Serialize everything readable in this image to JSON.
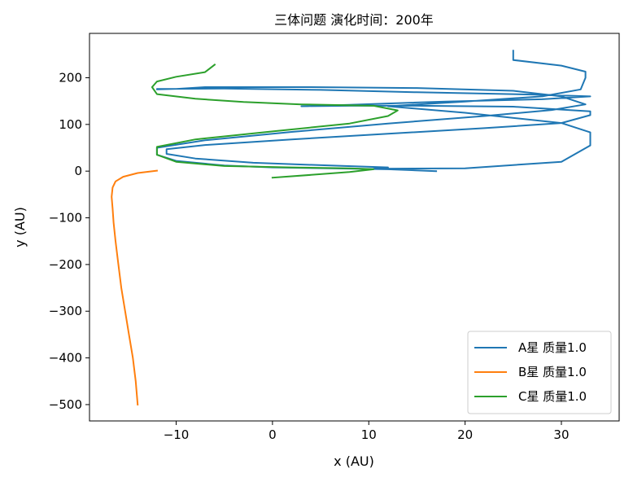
{
  "chart_data": {
    "type": "line",
    "title": "三体问题 演化时间：200年",
    "xlabel": "x (AU)",
    "ylabel": "y (AU)",
    "xlim": [
      -19,
      36
    ],
    "ylim": [
      -535,
      295
    ],
    "xticks": [
      -10,
      0,
      10,
      20,
      30
    ],
    "xtick_labels": [
      "−10",
      "0",
      "10",
      "20",
      "30"
    ],
    "yticks": [
      200,
      100,
      0,
      -100,
      -200,
      -300,
      -400,
      -500
    ],
    "ytick_labels": [
      "200",
      "100",
      "0",
      "−100",
      "−200",
      "−300",
      "−400",
      "−500"
    ],
    "grid": false,
    "legend_position": "bottom-right",
    "series": [
      {
        "name": "A星 质量1.0",
        "color": "#1f77b4",
        "points": [
          [
            17,
            0
          ],
          [
            12,
            4
          ],
          [
            6,
            6
          ],
          [
            0,
            8
          ],
          [
            -5,
            12
          ],
          [
            -10,
            22
          ],
          [
            -12,
            35
          ],
          [
            -12,
            50
          ],
          [
            -7,
            66
          ],
          [
            2,
            84
          ],
          [
            12,
            102
          ],
          [
            22,
            118
          ],
          [
            29,
            131
          ],
          [
            32.5,
            143
          ],
          [
            30,
            160
          ],
          [
            25,
            172
          ],
          [
            15,
            178
          ],
          [
            4,
            180
          ],
          [
            -7,
            180
          ],
          [
            -10,
            176
          ],
          [
            -12,
            175
          ],
          [
            -12,
            176
          ],
          [
            -5,
            177
          ],
          [
            5,
            174
          ],
          [
            15,
            169
          ],
          [
            27,
            164
          ],
          [
            33,
            160
          ],
          [
            28,
            154
          ],
          [
            18,
            149
          ],
          [
            8,
            142
          ],
          [
            3,
            139
          ],
          [
            8,
            140
          ],
          [
            15,
            140
          ],
          [
            25,
            138
          ],
          [
            33,
            128
          ],
          [
            33,
            120
          ],
          [
            30,
            103
          ],
          [
            22,
            92
          ],
          [
            12,
            80
          ],
          [
            2,
            68
          ],
          [
            -7,
            56
          ],
          [
            -11,
            47
          ],
          [
            -11,
            37
          ],
          [
            -8,
            27
          ],
          [
            -2,
            18
          ],
          [
            6,
            12
          ],
          [
            12,
            8
          ],
          [
            10.5,
            5
          ],
          [
            20,
            6
          ],
          [
            30,
            20
          ],
          [
            33,
            55
          ],
          [
            33,
            83
          ],
          [
            30,
            103
          ],
          [
            20,
            125
          ],
          [
            12,
            139
          ],
          [
            20,
            149
          ],
          [
            28,
            160
          ],
          [
            32,
            175
          ],
          [
            32.5,
            200
          ],
          [
            32.5,
            213
          ],
          [
            30,
            226
          ],
          [
            25,
            238
          ],
          [
            25,
            258
          ]
        ]
      },
      {
        "name": "B星 质量1.0",
        "color": "#ff7f0e",
        "points": [
          [
            -12,
            1
          ],
          [
            -14,
            -4
          ],
          [
            -15.5,
            -12
          ],
          [
            -16.3,
            -22
          ],
          [
            -16.6,
            -35
          ],
          [
            -16.7,
            -55
          ],
          [
            -16.6,
            -80
          ],
          [
            -16.5,
            -110
          ],
          [
            -16.3,
            -150
          ],
          [
            -16,
            -200
          ],
          [
            -15.7,
            -250
          ],
          [
            -15.3,
            -300
          ],
          [
            -14.9,
            -350
          ],
          [
            -14.5,
            -400
          ],
          [
            -14.2,
            -450
          ],
          [
            -14,
            -500
          ]
        ]
      },
      {
        "name": "C星 质量1.0",
        "color": "#2ca02c",
        "points": [
          [
            0,
            -14
          ],
          [
            4,
            -8
          ],
          [
            8,
            -2
          ],
          [
            10.5,
            4
          ],
          [
            8,
            6
          ],
          [
            2,
            8
          ],
          [
            -5,
            11
          ],
          [
            -10,
            20
          ],
          [
            -12,
            35
          ],
          [
            -12,
            52
          ],
          [
            -8,
            68
          ],
          [
            0,
            85
          ],
          [
            8,
            102
          ],
          [
            12,
            118
          ],
          [
            13,
            130
          ],
          [
            10.5,
            140
          ],
          [
            3,
            143
          ],
          [
            -3,
            148
          ],
          [
            -8,
            155
          ],
          [
            -12,
            165
          ],
          [
            -12.5,
            180
          ],
          [
            -12,
            192
          ],
          [
            -10,
            202
          ],
          [
            -7,
            212
          ],
          [
            -6,
            228
          ]
        ]
      }
    ]
  }
}
